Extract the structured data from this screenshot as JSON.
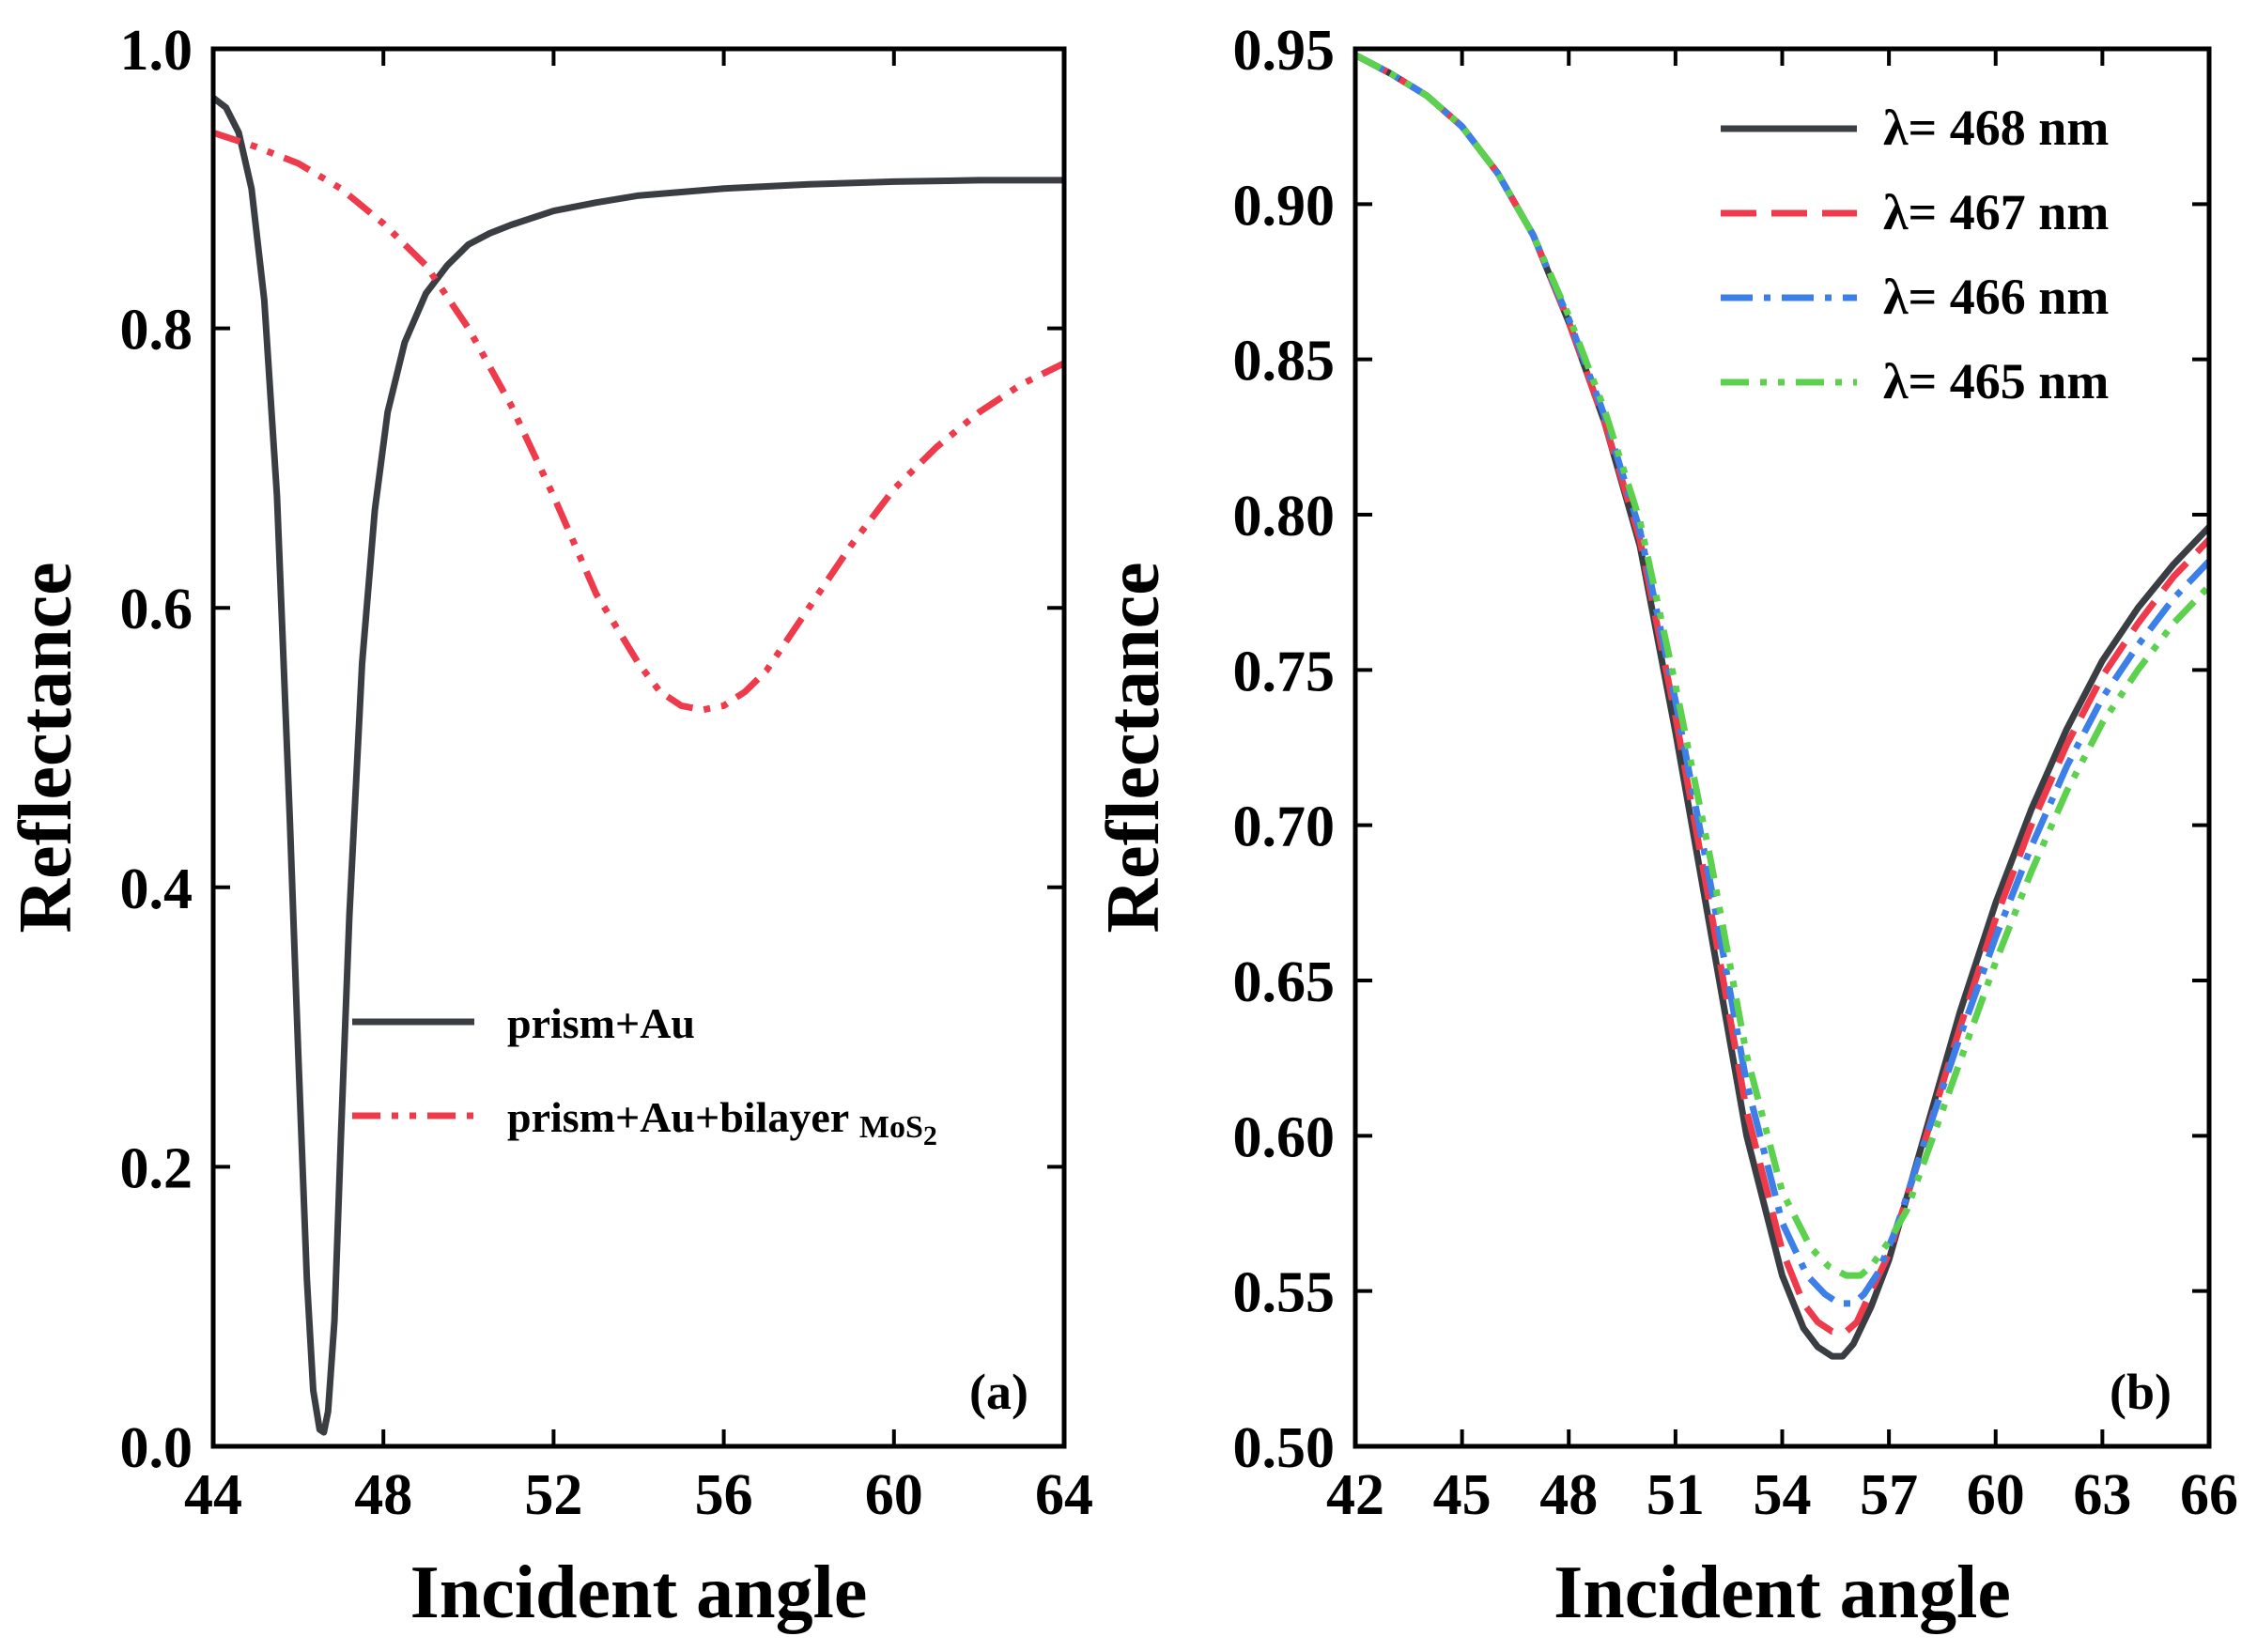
{
  "colors": {
    "dark_gray": "#3a3d42",
    "red": "#ee3a4b",
    "blue": "#3d7fe8",
    "green": "#5cd14e"
  },
  "chart_data": [
    {
      "type": "line",
      "panel_label": "(a)",
      "xlabel": "Incident angle",
      "ylabel": "Reflectance",
      "xlim": [
        44,
        64
      ],
      "ylim": [
        0.0,
        1.0
      ],
      "xticks": [
        44,
        48,
        52,
        56,
        60,
        64
      ],
      "xtick_labels": [
        "44",
        "48",
        "52",
        "56",
        "60",
        "64"
      ],
      "yticks": [
        0.0,
        0.2,
        0.4,
        0.6,
        0.8,
        1.0
      ],
      "ytick_labels": [
        "0.0",
        "0.2",
        "0.4",
        "0.6",
        "0.8",
        "1.0"
      ],
      "legend_position": "center-right",
      "series": [
        {
          "name": "prism+Au",
          "legend_main": "prism+Au",
          "legend_sub": "",
          "color": "#3a3d42",
          "dash": "solid",
          "x": [
            44.0,
            44.3,
            44.6,
            44.9,
            45.2,
            45.5,
            45.8,
            46.0,
            46.2,
            46.35,
            46.5,
            46.6,
            46.7,
            46.85,
            47.0,
            47.2,
            47.5,
            47.8,
            48.1,
            48.5,
            49.0,
            49.5,
            50.0,
            50.5,
            51.0,
            52.0,
            53.0,
            54.0,
            56.0,
            58.0,
            60.0,
            62.0,
            64.0
          ],
          "y": [
            0.965,
            0.958,
            0.94,
            0.9,
            0.82,
            0.68,
            0.45,
            0.28,
            0.12,
            0.04,
            0.012,
            0.01,
            0.025,
            0.09,
            0.22,
            0.38,
            0.56,
            0.67,
            0.74,
            0.79,
            0.825,
            0.845,
            0.86,
            0.868,
            0.874,
            0.884,
            0.89,
            0.895,
            0.9,
            0.903,
            0.905,
            0.906,
            0.906
          ]
        },
        {
          "name": "prism+Au+bilayer MoS2",
          "legend_main": "prism+Au+bilayer ",
          "legend_sub": "MoS",
          "legend_subscript": "2",
          "color": "#ee3a4b",
          "dash": "dash-dot-dot",
          "x": [
            44,
            45,
            46,
            47,
            48,
            49,
            50,
            51,
            52,
            53,
            54,
            54.5,
            55,
            55.5,
            56,
            56.5,
            57,
            58,
            59,
            60,
            61,
            62,
            63,
            64
          ],
          "y": [
            0.94,
            0.93,
            0.918,
            0.9,
            0.875,
            0.845,
            0.8,
            0.745,
            0.68,
            0.61,
            0.56,
            0.54,
            0.53,
            0.527,
            0.53,
            0.54,
            0.555,
            0.6,
            0.645,
            0.685,
            0.715,
            0.74,
            0.76,
            0.775
          ]
        }
      ]
    },
    {
      "type": "line",
      "panel_label": "(b)",
      "xlabel": "Incident angle",
      "ylabel": "Reflectance",
      "xlim": [
        42,
        66
      ],
      "ylim": [
        0.5,
        0.95
      ],
      "xticks": [
        42,
        45,
        48,
        51,
        54,
        57,
        60,
        63,
        66
      ],
      "xtick_labels": [
        "42",
        "45",
        "48",
        "51",
        "54",
        "57",
        "60",
        "63",
        "66"
      ],
      "yticks": [
        0.5,
        0.55,
        0.6,
        0.65,
        0.7,
        0.75,
        0.8,
        0.85,
        0.9,
        0.95
      ],
      "ytick_labels": [
        "0.50",
        "0.55",
        "0.60",
        "0.65",
        "0.70",
        "0.75",
        "0.80",
        "0.85",
        "0.90",
        "0.95"
      ],
      "legend_position": "top-right",
      "series": [
        {
          "name": "λ= 468 nm",
          "color": "#3a3d42",
          "dash": "solid",
          "x": [
            42,
            43,
            44,
            45,
            46,
            47,
            48,
            49,
            50,
            51,
            52,
            53,
            54,
            54.6,
            55,
            55.4,
            55.7,
            56,
            56.5,
            57,
            58,
            59,
            60,
            61,
            62,
            63,
            64,
            65,
            66
          ],
          "y": [
            0.948,
            0.942,
            0.935,
            0.925,
            0.91,
            0.89,
            0.862,
            0.83,
            0.79,
            0.73,
            0.665,
            0.6,
            0.555,
            0.538,
            0.532,
            0.529,
            0.529,
            0.533,
            0.545,
            0.56,
            0.6,
            0.64,
            0.675,
            0.705,
            0.731,
            0.753,
            0.77,
            0.784,
            0.796
          ]
        },
        {
          "name": "λ= 467 nm",
          "color": "#ee3a4b",
          "dash": "dash",
          "x": [
            42,
            43,
            44,
            45,
            46,
            47,
            48,
            49,
            50,
            51,
            52,
            53,
            54,
            54.6,
            55,
            55.4,
            55.8,
            56.1,
            56.5,
            57,
            58,
            59,
            60,
            61,
            62,
            63,
            64,
            65,
            66
          ],
          "y": [
            0.948,
            0.942,
            0.935,
            0.925,
            0.91,
            0.89,
            0.862,
            0.83,
            0.792,
            0.735,
            0.672,
            0.608,
            0.563,
            0.546,
            0.54,
            0.537,
            0.537,
            0.54,
            0.55,
            0.562,
            0.598,
            0.635,
            0.67,
            0.7,
            0.726,
            0.748,
            0.765,
            0.78,
            0.792
          ]
        },
        {
          "name": "λ= 466 nm",
          "color": "#3d7fe8",
          "dash": "dash-dot",
          "x": [
            42,
            43,
            44,
            45,
            46,
            47,
            48,
            49,
            50,
            51,
            52,
            53,
            54,
            54.7,
            55.2,
            55.6,
            56,
            56.3,
            56.7,
            57.2,
            58,
            59,
            60,
            61,
            62,
            63,
            64,
            65,
            66
          ],
          "y": [
            0.948,
            0.942,
            0.935,
            0.925,
            0.91,
            0.89,
            0.863,
            0.832,
            0.795,
            0.74,
            0.68,
            0.617,
            0.572,
            0.555,
            0.549,
            0.546,
            0.546,
            0.549,
            0.556,
            0.57,
            0.598,
            0.632,
            0.664,
            0.693,
            0.719,
            0.741,
            0.758,
            0.773,
            0.785
          ]
        },
        {
          "name": "λ= 465 nm",
          "color": "#5cd14e",
          "dash": "dash-dot-dot",
          "x": [
            42,
            43,
            44,
            45,
            46,
            47,
            48,
            49,
            50,
            51,
            52,
            53,
            54,
            54.8,
            55.3,
            55.8,
            56.2,
            56.5,
            57,
            57.5,
            58,
            59,
            60,
            61,
            62,
            63,
            64,
            65,
            66
          ],
          "y": [
            0.948,
            0.942,
            0.935,
            0.925,
            0.91,
            0.89,
            0.864,
            0.834,
            0.798,
            0.745,
            0.688,
            0.626,
            0.582,
            0.564,
            0.558,
            0.555,
            0.555,
            0.558,
            0.566,
            0.576,
            0.592,
            0.624,
            0.656,
            0.685,
            0.711,
            0.733,
            0.75,
            0.765,
            0.777
          ]
        }
      ]
    }
  ]
}
